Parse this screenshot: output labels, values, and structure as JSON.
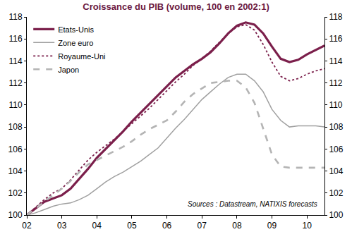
{
  "chart_data": {
    "type": "line",
    "title": "Croissance du PIB (volume, 100 en 2002:1)",
    "annotations": [
      "Sources : Datastream, NATIXIS forecasts"
    ],
    "categories": [
      "02",
      null,
      null,
      null,
      "03",
      null,
      null,
      null,
      "04",
      null,
      null,
      null,
      "05",
      null,
      null,
      null,
      "06",
      null,
      null,
      null,
      "07",
      null,
      null,
      null,
      "08",
      null,
      null,
      null,
      "09",
      null,
      null,
      null,
      "10",
      null,
      null
    ],
    "series": [
      {
        "name": "Etats-Unis",
        "color": "#7b1f4b",
        "line_style": "solid",
        "values": [
          100,
          100.6,
          101.2,
          101.5,
          101.8,
          102.4,
          103.3,
          104.2,
          105.2,
          106.0,
          106.8,
          107.6,
          108.5,
          109.3,
          110.1,
          110.9,
          111.7,
          112.5,
          113.1,
          113.7,
          114.2,
          114.8,
          115.6,
          116.5,
          117.2,
          117.5,
          117.3,
          116.5,
          115.3,
          114.2,
          113.9,
          114.1,
          114.6,
          115.0,
          115.4
        ]
      },
      {
        "name": "Zone euro",
        "color": "#a0a0a0",
        "line_style": "solid",
        "values": [
          100,
          100.2,
          100.5,
          100.8,
          101.0,
          101.1,
          101.4,
          101.8,
          102.4,
          103.0,
          103.5,
          103.9,
          104.4,
          104.9,
          105.5,
          106.1,
          107.0,
          107.9,
          108.7,
          109.6,
          110.5,
          111.2,
          111.9,
          112.5,
          112.8,
          112.8,
          112.2,
          111.2,
          109.6,
          108.6,
          108.0,
          108.1,
          108.1,
          108.1,
          108.0
        ]
      },
      {
        "name": "Royaume-Uni",
        "color": "#7b1f4b",
        "line_style": "dot",
        "values": [
          100,
          100.7,
          101.4,
          102.0,
          102.4,
          103.2,
          104.1,
          105.0,
          105.7,
          106.3,
          106.9,
          107.6,
          108.3,
          109.0,
          109.7,
          110.5,
          111.3,
          112.1,
          112.8,
          113.6,
          114.2,
          114.9,
          115.7,
          116.5,
          117.1,
          117.3,
          116.8,
          115.5,
          113.9,
          112.6,
          112.2,
          112.4,
          112.8,
          113.1,
          113.3
        ]
      },
      {
        "name": "Japon",
        "color": "#b4b4b4",
        "line_style": "dash",
        "values": [
          100,
          100.6,
          101.2,
          101.8,
          102.4,
          103.1,
          103.9,
          104.6,
          105.0,
          105.4,
          105.8,
          106.2,
          106.7,
          107.3,
          107.8,
          108.2,
          108.6,
          109.4,
          110.3,
          111.0,
          111.5,
          112.0,
          112.1,
          112.2,
          112.2,
          111.6,
          110.2,
          107.8,
          105.5,
          104.4,
          104.3,
          104.3,
          104.3,
          104.3,
          104.3
        ]
      }
    ],
    "ylim": [
      100,
      118
    ],
    "yticks": [
      100,
      102,
      104,
      106,
      108,
      110,
      112,
      114,
      116,
      118
    ],
    "y2lim": [
      100,
      118
    ],
    "y2ticks": [
      100,
      102,
      104,
      106,
      108,
      110,
      112,
      114,
      116,
      118
    ],
    "grid": false,
    "legend": "top left"
  }
}
